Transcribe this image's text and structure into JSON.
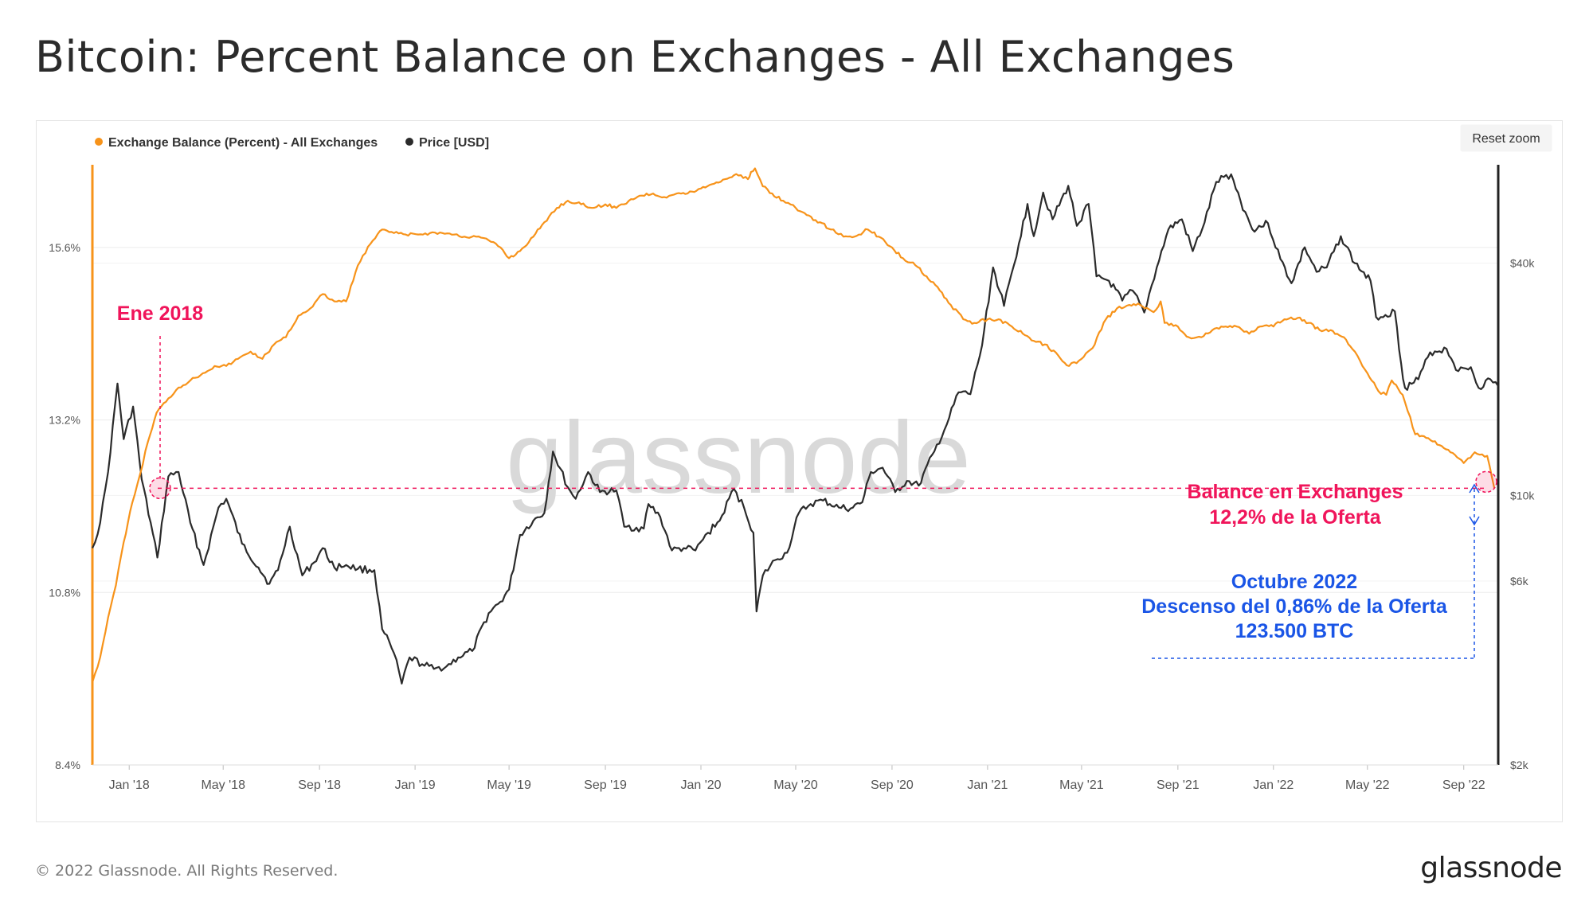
{
  "page": {
    "title": "Bitcoin: Percent Balance on Exchanges - All Exchanges",
    "copyright": "© 2022 Glassnode. All Rights Reserved.",
    "logo_text": "glassnode",
    "watermark": "glassnode",
    "reset_zoom_label": "Reset zoom"
  },
  "colors": {
    "balance": "#f7931a",
    "price": "#2b2b2b",
    "annotation_red": "#f0145a",
    "annotation_blue": "#1a55e6",
    "grid": "#ececec",
    "watermark": "#d6d6d6"
  },
  "chart_data": {
    "type": "line",
    "title": "Bitcoin: Percent Balance on Exchanges - All Exchanges",
    "legend": [
      {
        "name": "Exchange Balance (Percent) - All Exchanges",
        "color": "#f7931a"
      },
      {
        "name": "Price [USD]",
        "color": "#2b2b2b"
      }
    ],
    "legend_position": "top-left",
    "grid": true,
    "x_ticks": [
      "Jan '18",
      "May '18",
      "Sep '18",
      "Jan '19",
      "May '19",
      "Sep '19",
      "Jan '20",
      "May '20",
      "Sep '20",
      "Jan '21",
      "May '21",
      "Sep '21",
      "Jan '22",
      "May '22",
      "Sep '22"
    ],
    "x_range": [
      "2017-11-15",
      "2022-10-15"
    ],
    "y_left": {
      "label": "",
      "ticks": [
        "8.4%",
        "10.8%",
        "13.2%",
        "15.6%"
      ],
      "tick_values": [
        8.4,
        10.8,
        13.2,
        15.6
      ],
      "range": [
        8.4,
        16.75
      ]
    },
    "y_right": {
      "label": "",
      "scale": "log",
      "ticks": [
        "$2k",
        "$6k",
        "$10k",
        "$40k"
      ],
      "tick_values": [
        2000,
        6000,
        10000,
        40000
      ],
      "range": [
        2000,
        72000
      ]
    },
    "series": [
      {
        "name": "Exchange Balance (Percent) - All Exchanges",
        "axis": "left",
        "points": [
          [
            "2017-11-15",
            9.55
          ],
          [
            "2017-11-25",
            9.9
          ],
          [
            "2017-12-05",
            10.45
          ],
          [
            "2017-12-15",
            10.9
          ],
          [
            "2017-12-25",
            11.5
          ],
          [
            "2018-01-05",
            12.05
          ],
          [
            "2018-01-15",
            12.45
          ],
          [
            "2018-01-25",
            12.9
          ],
          [
            "2018-02-05",
            13.3
          ],
          [
            "2018-02-20",
            13.5
          ],
          [
            "2018-03-05",
            13.65
          ],
          [
            "2018-03-20",
            13.75
          ],
          [
            "2018-04-05",
            13.85
          ],
          [
            "2018-04-20",
            13.95
          ],
          [
            "2018-05-05",
            13.95
          ],
          [
            "2018-05-20",
            14.05
          ],
          [
            "2018-06-05",
            14.15
          ],
          [
            "2018-06-20",
            14.05
          ],
          [
            "2018-07-05",
            14.25
          ],
          [
            "2018-07-20",
            14.35
          ],
          [
            "2018-08-05",
            14.65
          ],
          [
            "2018-08-20",
            14.75
          ],
          [
            "2018-09-05",
            14.95
          ],
          [
            "2018-09-20",
            14.85
          ],
          [
            "2018-10-05",
            14.85
          ],
          [
            "2018-10-20",
            15.35
          ],
          [
            "2018-11-05",
            15.65
          ],
          [
            "2018-11-20",
            15.85
          ],
          [
            "2018-12-05",
            15.8
          ],
          [
            "2018-12-20",
            15.78
          ],
          [
            "2019-01-05",
            15.78
          ],
          [
            "2019-01-20",
            15.8
          ],
          [
            "2019-02-05",
            15.8
          ],
          [
            "2019-02-20",
            15.78
          ],
          [
            "2019-03-05",
            15.75
          ],
          [
            "2019-03-20",
            15.75
          ],
          [
            "2019-04-05",
            15.7
          ],
          [
            "2019-04-20",
            15.6
          ],
          [
            "2019-05-01",
            15.45
          ],
          [
            "2019-05-15",
            15.55
          ],
          [
            "2019-06-01",
            15.75
          ],
          [
            "2019-06-15",
            15.95
          ],
          [
            "2019-07-01",
            16.15
          ],
          [
            "2019-07-15",
            16.25
          ],
          [
            "2019-08-01",
            16.2
          ],
          [
            "2019-08-15",
            16.15
          ],
          [
            "2019-09-01",
            16.2
          ],
          [
            "2019-09-15",
            16.15
          ],
          [
            "2019-10-01",
            16.25
          ],
          [
            "2019-10-15",
            16.32
          ],
          [
            "2019-11-01",
            16.35
          ],
          [
            "2019-11-15",
            16.3
          ],
          [
            "2019-12-01",
            16.35
          ],
          [
            "2019-12-15",
            16.35
          ],
          [
            "2020-01-01",
            16.42
          ],
          [
            "2020-01-15",
            16.48
          ],
          [
            "2020-02-01",
            16.55
          ],
          [
            "2020-02-15",
            16.62
          ],
          [
            "2020-03-01",
            16.55
          ],
          [
            "2020-03-05",
            16.65
          ],
          [
            "2020-03-10",
            16.7
          ],
          [
            "2020-03-20",
            16.45
          ],
          [
            "2020-04-01",
            16.35
          ],
          [
            "2020-04-15",
            16.25
          ],
          [
            "2020-05-01",
            16.15
          ],
          [
            "2020-05-15",
            16.05
          ],
          [
            "2020-06-01",
            15.95
          ],
          [
            "2020-06-15",
            15.85
          ],
          [
            "2020-07-01",
            15.75
          ],
          [
            "2020-07-15",
            15.75
          ],
          [
            "2020-08-01",
            15.85
          ],
          [
            "2020-08-15",
            15.75
          ],
          [
            "2020-09-01",
            15.6
          ],
          [
            "2020-09-15",
            15.45
          ],
          [
            "2020-10-01",
            15.35
          ],
          [
            "2020-10-15",
            15.2
          ],
          [
            "2020-11-01",
            15.0
          ],
          [
            "2020-11-15",
            14.8
          ],
          [
            "2020-12-01",
            14.6
          ],
          [
            "2020-12-15",
            14.55
          ],
          [
            "2021-01-01",
            14.6
          ],
          [
            "2021-01-15",
            14.6
          ],
          [
            "2021-02-01",
            14.5
          ],
          [
            "2021-02-15",
            14.4
          ],
          [
            "2021-03-01",
            14.3
          ],
          [
            "2021-03-15",
            14.25
          ],
          [
            "2021-04-01",
            14.1
          ],
          [
            "2021-04-15",
            13.95
          ],
          [
            "2021-05-01",
            14.05
          ],
          [
            "2021-05-15",
            14.2
          ],
          [
            "2021-06-01",
            14.6
          ],
          [
            "2021-06-15",
            14.75
          ],
          [
            "2021-07-01",
            14.8
          ],
          [
            "2021-07-15",
            14.8
          ],
          [
            "2021-08-01",
            14.7
          ],
          [
            "2021-08-10",
            14.85
          ],
          [
            "2021-08-15",
            14.55
          ],
          [
            "2021-09-01",
            14.5
          ],
          [
            "2021-09-15",
            14.35
          ],
          [
            "2021-10-01",
            14.35
          ],
          [
            "2021-10-15",
            14.45
          ],
          [
            "2021-11-01",
            14.5
          ],
          [
            "2021-11-15",
            14.5
          ],
          [
            "2021-12-01",
            14.4
          ],
          [
            "2021-12-15",
            14.5
          ],
          [
            "2022-01-01",
            14.5
          ],
          [
            "2022-01-15",
            14.6
          ],
          [
            "2022-02-01",
            14.62
          ],
          [
            "2022-02-15",
            14.55
          ],
          [
            "2022-03-01",
            14.45
          ],
          [
            "2022-03-15",
            14.45
          ],
          [
            "2022-04-01",
            14.35
          ],
          [
            "2022-04-15",
            14.15
          ],
          [
            "2022-05-01",
            13.85
          ],
          [
            "2022-05-15",
            13.6
          ],
          [
            "2022-05-25",
            13.55
          ],
          [
            "2022-06-01",
            13.75
          ],
          [
            "2022-06-15",
            13.55
          ],
          [
            "2022-07-01",
            13.0
          ],
          [
            "2022-07-15",
            12.95
          ],
          [
            "2022-08-01",
            12.85
          ],
          [
            "2022-08-15",
            12.75
          ],
          [
            "2022-09-01",
            12.6
          ],
          [
            "2022-09-15",
            12.75
          ],
          [
            "2022-10-01",
            12.7
          ],
          [
            "2022-10-10",
            12.25
          ]
        ]
      },
      {
        "name": "Price [USD]",
        "axis": "right",
        "points": [
          [
            "2017-11-15",
            7300
          ],
          [
            "2017-11-25",
            8500
          ],
          [
            "2017-12-05",
            11500
          ],
          [
            "2017-12-17",
            19500
          ],
          [
            "2017-12-25",
            14000
          ],
          [
            "2018-01-06",
            17000
          ],
          [
            "2018-01-17",
            11000
          ],
          [
            "2018-02-06",
            6900
          ],
          [
            "2018-02-20",
            11200
          ],
          [
            "2018-03-05",
            11500
          ],
          [
            "2018-03-20",
            8500
          ],
          [
            "2018-04-06",
            6600
          ],
          [
            "2018-04-25",
            9300
          ],
          [
            "2018-05-05",
            9800
          ],
          [
            "2018-05-25",
            7500
          ],
          [
            "2018-06-15",
            6500
          ],
          [
            "2018-06-29",
            5900
          ],
          [
            "2018-07-10",
            6400
          ],
          [
            "2018-07-25",
            8300
          ],
          [
            "2018-08-10",
            6200
          ],
          [
            "2018-08-25",
            6700
          ],
          [
            "2018-09-05",
            7300
          ],
          [
            "2018-09-20",
            6500
          ],
          [
            "2018-10-05",
            6600
          ],
          [
            "2018-10-20",
            6450
          ],
          [
            "2018-11-10",
            6400
          ],
          [
            "2018-11-20",
            4500
          ],
          [
            "2018-12-05",
            3900
          ],
          [
            "2018-12-15",
            3250
          ],
          [
            "2018-12-25",
            3800
          ],
          [
            "2019-01-10",
            3650
          ],
          [
            "2019-01-25",
            3550
          ],
          [
            "2019-02-10",
            3600
          ],
          [
            "2019-02-25",
            3800
          ],
          [
            "2019-03-15",
            3950
          ],
          [
            "2019-04-05",
            4950
          ],
          [
            "2019-04-20",
            5300
          ],
          [
            "2019-05-01",
            5700
          ],
          [
            "2019-05-15",
            7900
          ],
          [
            "2019-06-01",
            8600
          ],
          [
            "2019-06-15",
            9000
          ],
          [
            "2019-06-26",
            13000
          ],
          [
            "2019-07-15",
            10500
          ],
          [
            "2019-07-25",
            9800
          ],
          [
            "2019-08-10",
            11500
          ],
          [
            "2019-08-25",
            10200
          ],
          [
            "2019-09-15",
            10300
          ],
          [
            "2019-09-25",
            8300
          ],
          [
            "2019-10-20",
            8200
          ],
          [
            "2019-10-26",
            9500
          ],
          [
            "2019-11-10",
            8800
          ],
          [
            "2019-11-25",
            7200
          ],
          [
            "2019-12-10",
            7300
          ],
          [
            "2019-12-25",
            7200
          ],
          [
            "2020-01-10",
            8000
          ],
          [
            "2020-01-25",
            8600
          ],
          [
            "2020-02-12",
            10400
          ],
          [
            "2020-02-25",
            9300
          ],
          [
            "2020-03-08",
            8000
          ],
          [
            "2020-03-12",
            5000
          ],
          [
            "2020-03-20",
            6200
          ],
          [
            "2020-04-05",
            6800
          ],
          [
            "2020-04-20",
            7100
          ],
          [
            "2020-05-05",
            9000
          ],
          [
            "2020-05-20",
            9500
          ],
          [
            "2020-06-05",
            9700
          ],
          [
            "2020-06-25",
            9300
          ],
          [
            "2020-07-10",
            9250
          ],
          [
            "2020-07-25",
            9600
          ],
          [
            "2020-08-05",
            11500
          ],
          [
            "2020-08-20",
            11800
          ],
          [
            "2020-09-05",
            10200
          ],
          [
            "2020-09-20",
            10900
          ],
          [
            "2020-10-05",
            10600
          ],
          [
            "2020-10-25",
            13000
          ],
          [
            "2020-11-10",
            15300
          ],
          [
            "2020-11-25",
            18500
          ],
          [
            "2020-12-10",
            18300
          ],
          [
            "2020-12-25",
            24500
          ],
          [
            "2021-01-08",
            39000
          ],
          [
            "2021-01-22",
            31000
          ],
          [
            "2021-02-10",
            45000
          ],
          [
            "2021-02-21",
            57000
          ],
          [
            "2021-03-01",
            47000
          ],
          [
            "2021-03-13",
            61000
          ],
          [
            "2021-03-25",
            52000
          ],
          [
            "2021-04-14",
            63500
          ],
          [
            "2021-04-25",
            50000
          ],
          [
            "2021-05-10",
            57000
          ],
          [
            "2021-05-20",
            37000
          ],
          [
            "2021-06-05",
            36000
          ],
          [
            "2021-06-22",
            32000
          ],
          [
            "2021-07-05",
            34000
          ],
          [
            "2021-07-20",
            29800
          ],
          [
            "2021-08-05",
            39000
          ],
          [
            "2021-08-20",
            49000
          ],
          [
            "2021-09-06",
            52000
          ],
          [
            "2021-09-20",
            43000
          ],
          [
            "2021-10-05",
            51000
          ],
          [
            "2021-10-20",
            65000
          ],
          [
            "2021-11-08",
            68000
          ],
          [
            "2021-11-20",
            58000
          ],
          [
            "2021-12-05",
            49000
          ],
          [
            "2021-12-25",
            50800
          ],
          [
            "2022-01-10",
            41000
          ],
          [
            "2022-01-24",
            35500
          ],
          [
            "2022-02-10",
            44000
          ],
          [
            "2022-02-25",
            38000
          ],
          [
            "2022-03-10",
            39000
          ],
          [
            "2022-03-28",
            47000
          ],
          [
            "2022-04-15",
            40000
          ],
          [
            "2022-05-05",
            36000
          ],
          [
            "2022-05-12",
            29000
          ],
          [
            "2022-06-05",
            30000
          ],
          [
            "2022-06-13",
            22000
          ],
          [
            "2022-06-18",
            19000
          ],
          [
            "2022-07-05",
            20000
          ],
          [
            "2022-07-20",
            23500
          ],
          [
            "2022-08-10",
            24000
          ],
          [
            "2022-08-25",
            21000
          ],
          [
            "2022-09-10",
            21500
          ],
          [
            "2022-09-20",
            19000
          ],
          [
            "2022-10-05",
            20000
          ],
          [
            "2022-10-15",
            19200
          ]
        ]
      }
    ],
    "annotations": {
      "ene2018_label": "Ene 2018",
      "balance_label_line1": "Balance en Exchanges",
      "balance_label_line2": "12,2% de la Oferta",
      "octubre_line1": "Octubre 2022",
      "octubre_line2": "Descenso del 0,86% de la Oferta",
      "octubre_line3": "123.500 BTC"
    }
  }
}
